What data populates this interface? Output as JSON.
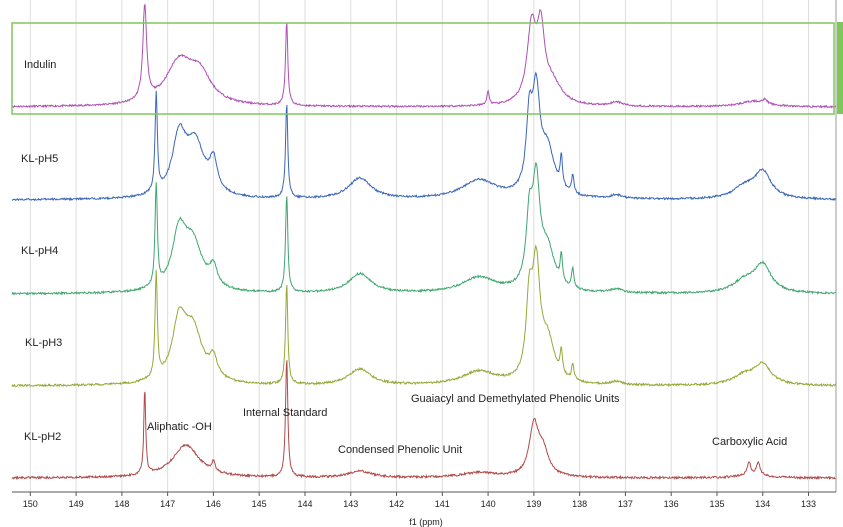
{
  "chart_data": {
    "type": "line",
    "xlabel": "f1 (ppm)",
    "xlim": [
      150.4,
      132.4
    ],
    "x_reversed": true,
    "x_ticks": [
      150,
      149,
      148,
      147,
      146,
      145,
      144,
      143,
      142,
      141,
      140,
      139,
      138,
      137,
      136,
      135,
      134,
      133
    ],
    "grid": true,
    "highlight_box_series": "Indulin",
    "highlight_box_color": "#7ec85a",
    "annotations": [
      {
        "text": "Aliphatic -OH",
        "x": 146.5
      },
      {
        "text": "Internal Standard",
        "x": 143.5
      },
      {
        "text": "Guaiacyl and Demethylated Phenolic Units",
        "x": 138.8
      },
      {
        "text": "Condensed Phenolic Unit",
        "x": 141.0
      },
      {
        "text": "Carboxylic Acid",
        "x": 134.3
      }
    ],
    "series": [
      {
        "name": "Indulin",
        "color": "#b04fb6",
        "peaks": [
          [
            147.5,
            1.35,
            0.05
          ],
          [
            146.75,
            0.6,
            0.35
          ],
          [
            146.3,
            0.4,
            0.3
          ],
          [
            144.4,
            1.2,
            0.03
          ],
          [
            140.0,
            0.2,
            0.03
          ],
          [
            139.05,
            1.05,
            0.12
          ],
          [
            138.85,
            0.95,
            0.1
          ],
          [
            138.6,
            0.3,
            0.25
          ],
          [
            137.2,
            0.06,
            0.15
          ],
          [
            134.2,
            0.08,
            0.35
          ],
          [
            133.95,
            0.07,
            0.05
          ]
        ]
      },
      {
        "name": "KL-pH5",
        "color": "#3a66b8",
        "peaks": [
          [
            147.25,
            1.3,
            0.03
          ],
          [
            146.75,
            0.75,
            0.18
          ],
          [
            146.4,
            0.7,
            0.25
          ],
          [
            146.0,
            0.4,
            0.1
          ],
          [
            144.4,
            1.25,
            0.03
          ],
          [
            142.8,
            0.28,
            0.3
          ],
          [
            140.2,
            0.25,
            0.45
          ],
          [
            139.1,
            0.9,
            0.08
          ],
          [
            138.95,
            1.25,
            0.1
          ],
          [
            138.7,
            0.6,
            0.18
          ],
          [
            138.4,
            0.4,
            0.03
          ],
          [
            138.15,
            0.25,
            0.03
          ],
          [
            137.2,
            0.05,
            0.15
          ],
          [
            134.0,
            0.35,
            0.22
          ],
          [
            134.4,
            0.15,
            0.3
          ]
        ]
      },
      {
        "name": "KL-pH4",
        "color": "#3fa670",
        "peaks": [
          [
            147.25,
            1.3,
            0.03
          ],
          [
            146.75,
            0.7,
            0.18
          ],
          [
            146.45,
            0.6,
            0.25
          ],
          [
            146.0,
            0.25,
            0.1
          ],
          [
            144.4,
            1.25,
            0.03
          ],
          [
            142.8,
            0.25,
            0.3
          ],
          [
            140.2,
            0.2,
            0.45
          ],
          [
            139.1,
            0.8,
            0.08
          ],
          [
            138.95,
            1.3,
            0.1
          ],
          [
            138.7,
            0.5,
            0.18
          ],
          [
            138.4,
            0.35,
            0.03
          ],
          [
            138.15,
            0.25,
            0.03
          ],
          [
            137.2,
            0.05,
            0.15
          ],
          [
            134.0,
            0.35,
            0.22
          ],
          [
            134.4,
            0.15,
            0.3
          ]
        ]
      },
      {
        "name": "KL-pH3",
        "color": "#98a838",
        "peaks": [
          [
            147.25,
            1.3,
            0.03
          ],
          [
            146.75,
            0.7,
            0.18
          ],
          [
            146.45,
            0.65,
            0.25
          ],
          [
            146.0,
            0.25,
            0.1
          ],
          [
            144.4,
            1.25,
            0.03
          ],
          [
            142.8,
            0.2,
            0.3
          ],
          [
            140.2,
            0.17,
            0.45
          ],
          [
            139.1,
            0.9,
            0.08
          ],
          [
            138.95,
            1.35,
            0.1
          ],
          [
            138.7,
            0.5,
            0.18
          ],
          [
            138.4,
            0.3,
            0.03
          ],
          [
            138.15,
            0.2,
            0.03
          ],
          [
            137.2,
            0.04,
            0.15
          ],
          [
            134.0,
            0.25,
            0.22
          ],
          [
            134.4,
            0.12,
            0.3
          ]
        ]
      },
      {
        "name": "KL-pH2",
        "color": "#b14a4a",
        "peaks": [
          [
            147.5,
            1.05,
            0.025
          ],
          [
            146.6,
            0.4,
            0.35
          ],
          [
            146.0,
            0.12,
            0.04
          ],
          [
            144.4,
            1.45,
            0.03
          ],
          [
            142.8,
            0.08,
            0.3
          ],
          [
            140.2,
            0.06,
            0.45
          ],
          [
            139.0,
            0.6,
            0.12
          ],
          [
            138.8,
            0.3,
            0.15
          ],
          [
            134.3,
            0.15,
            0.04
          ],
          [
            134.1,
            0.15,
            0.04
          ],
          [
            134.2,
            0.05,
            0.3
          ]
        ]
      }
    ]
  }
}
